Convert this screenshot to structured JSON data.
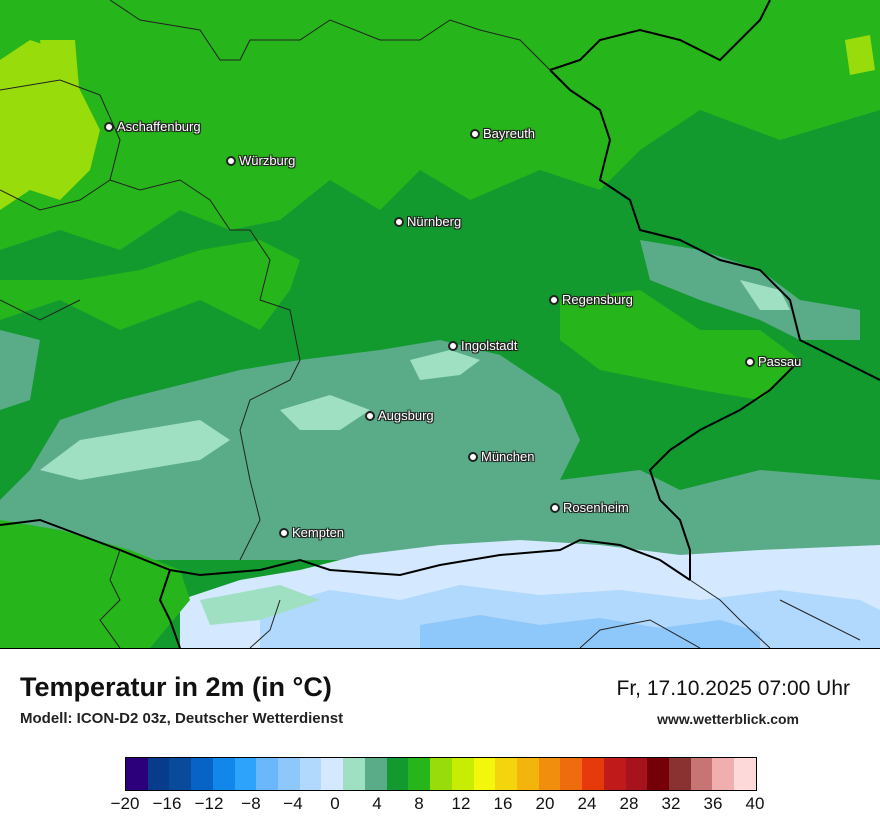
{
  "map": {
    "cities": [
      {
        "name": "Aschaffenburg"
      },
      {
        "name": "Würzburg"
      },
      {
        "name": "Bayreuth"
      },
      {
        "name": "Nürnberg"
      },
      {
        "name": "Regensburg"
      },
      {
        "name": "Ingolstadt"
      },
      {
        "name": "Passau"
      },
      {
        "name": "Augsburg"
      },
      {
        "name": "München"
      },
      {
        "name": "Rosenheim"
      },
      {
        "name": "Kempten"
      }
    ]
  },
  "footer": {
    "title": "Temperatur in 2m (in °C)",
    "subtitle": "Modell: ICON-D2 03z, Deutscher Wetterdienst",
    "datetime": "Fr, 17.10.2025 07:00 Uhr",
    "website": "www.wetterblick.com"
  },
  "legend": {
    "colors": [
      "#2b007a",
      "#073b8c",
      "#0a4a9a",
      "#0863c6",
      "#1187ec",
      "#2ea3fb",
      "#6ab8fb",
      "#8ec8fb",
      "#b1d8fd",
      "#d4e9ff",
      "#9fe0c3",
      "#5aac88",
      "#139a2e",
      "#26b51a",
      "#98dc0c",
      "#c9ec05",
      "#f2f70c",
      "#f4d40c",
      "#f3b40c",
      "#f28e0e",
      "#ef6c0e",
      "#e63a0c",
      "#c11a1a",
      "#a6131c",
      "#750008",
      "#8a3232",
      "#c77474",
      "#f0aeae",
      "#fdd9d9"
    ],
    "ticks": [
      "−20",
      "−16",
      "−12",
      "−8",
      "−4",
      "0",
      "4",
      "8",
      "12",
      "16",
      "20",
      "24",
      "28",
      "32",
      "36",
      "40"
    ]
  }
}
